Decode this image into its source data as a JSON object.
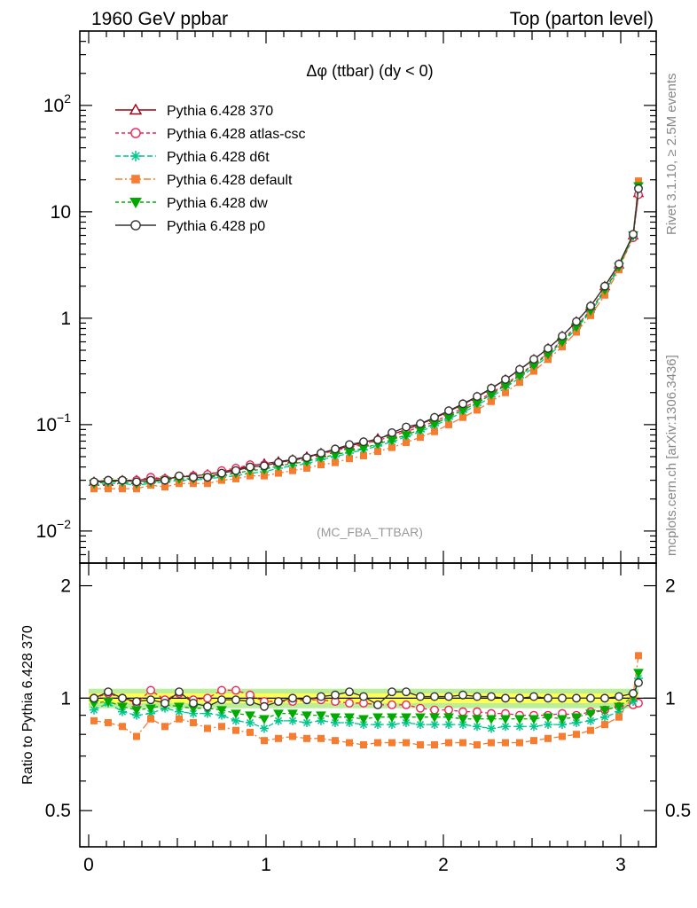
{
  "header": {
    "left": "1960 GeV ppbar",
    "right": "Top (parton level)"
  },
  "plot_title": "Δφ (ttbar) (dy < 0)",
  "watermark": "(MC_FBA_TTBAR)",
  "side_text": {
    "rivet": "Rivet 3.1.10, ≥ 2.5M events",
    "mcplots": "mcplots.cern.ch [arXiv:1306.3436]"
  },
  "ratio_ylabel": "Ratio to Pythia 6.428 370",
  "colors": {
    "p370": "#9b0015",
    "atlas": "#ee2255",
    "d6t": "#00c78c",
    "default": "#f57d32",
    "dw": "#00aa00",
    "p0": "#333333",
    "band_inner": "#ffff55",
    "band_outer": "#bbee99"
  },
  "chart_data": [
    {
      "type": "line",
      "title": "Δφ (ttbar) (dy < 0)",
      "xlabel": "",
      "ylabel": "",
      "xlim": [
        -0.05,
        3.2
      ],
      "ylim": [
        0.005,
        500
      ],
      "yscale": "log",
      "xticks": [
        0,
        1,
        2,
        3
      ],
      "yticks": [
        {
          "value": 0.01,
          "base": "10",
          "exp": "−2"
        },
        {
          "value": 0.1,
          "base": "10",
          "exp": "−1"
        },
        {
          "value": 1,
          "base": "1",
          "exp": ""
        },
        {
          "value": 10,
          "base": "10",
          "exp": ""
        },
        {
          "value": 100,
          "base": "10",
          "exp": "2"
        }
      ],
      "x": [
        0.03,
        0.11,
        0.19,
        0.27,
        0.35,
        0.43,
        0.51,
        0.59,
        0.67,
        0.75,
        0.83,
        0.91,
        0.99,
        1.07,
        1.15,
        1.23,
        1.31,
        1.39,
        1.47,
        1.55,
        1.63,
        1.71,
        1.79,
        1.87,
        1.95,
        2.03,
        2.11,
        2.19,
        2.27,
        2.35,
        2.43,
        2.51,
        2.59,
        2.67,
        2.75,
        2.83,
        2.91,
        2.99,
        3.07,
        3.1
      ],
      "series": [
        {
          "name": "Pythia 6.428 370",
          "key": "p370",
          "marker": "triangle-up",
          "dash": "solid",
          "values": [
            0.029,
            0.029,
            0.03,
            0.03,
            0.031,
            0.031,
            0.032,
            0.033,
            0.034,
            0.036,
            0.038,
            0.041,
            0.043,
            0.045,
            0.047,
            0.05,
            0.054,
            0.058,
            0.063,
            0.068,
            0.074,
            0.081,
            0.09,
            0.101,
            0.115,
            0.133,
            0.155,
            0.182,
            0.218,
            0.265,
            0.328,
            0.41,
            0.52,
            0.68,
            0.93,
            1.3,
            2.0,
            3.2,
            6.0,
            15.0
          ]
        },
        {
          "name": "Pythia 6.428 atlas-csc",
          "key": "atlas",
          "marker": "circle-open",
          "dash": "4,3",
          "values": [
            0.029,
            0.03,
            0.03,
            0.03,
            0.032,
            0.031,
            0.033,
            0.033,
            0.034,
            0.037,
            0.039,
            0.042,
            0.042,
            0.044,
            0.046,
            0.049,
            0.053,
            0.057,
            0.061,
            0.066,
            0.071,
            0.078,
            0.086,
            0.095,
            0.107,
            0.123,
            0.143,
            0.167,
            0.198,
            0.24,
            0.297,
            0.37,
            0.47,
            0.62,
            0.84,
            1.2,
            1.85,
            3.0,
            5.7,
            14.5
          ]
        },
        {
          "name": "Pythia 6.428 d6t",
          "key": "d6t",
          "marker": "star",
          "dash": "6,3",
          "values": [
            0.027,
            0.028,
            0.028,
            0.027,
            0.028,
            0.029,
            0.03,
            0.03,
            0.031,
            0.032,
            0.033,
            0.035,
            0.036,
            0.039,
            0.041,
            0.043,
            0.047,
            0.05,
            0.054,
            0.058,
            0.063,
            0.069,
            0.077,
            0.086,
            0.098,
            0.113,
            0.131,
            0.152,
            0.182,
            0.222,
            0.276,
            0.345,
            0.44,
            0.58,
            0.8,
            1.14,
            1.78,
            2.95,
            5.9,
            17.0
          ]
        },
        {
          "name": "Pythia 6.428 default",
          "key": "default",
          "marker": "square",
          "dash": "8,3,2,3",
          "values": [
            0.025,
            0.025,
            0.025,
            0.025,
            0.027,
            0.026,
            0.028,
            0.028,
            0.028,
            0.03,
            0.031,
            0.033,
            0.033,
            0.035,
            0.037,
            0.039,
            0.042,
            0.044,
            0.048,
            0.051,
            0.056,
            0.061,
            0.068,
            0.076,
            0.086,
            0.1,
            0.117,
            0.137,
            0.165,
            0.2,
            0.25,
            0.318,
            0.41,
            0.54,
            0.74,
            1.06,
            1.65,
            2.85,
            6.1,
            19.5
          ]
        },
        {
          "name": "Pythia 6.428 dw",
          "key": "dw",
          "marker": "triangle-down",
          "dash": "4,3",
          "values": [
            0.028,
            0.029,
            0.029,
            0.028,
            0.029,
            0.03,
            0.031,
            0.031,
            0.032,
            0.033,
            0.035,
            0.037,
            0.038,
            0.041,
            0.043,
            0.045,
            0.049,
            0.052,
            0.056,
            0.06,
            0.066,
            0.072,
            0.08,
            0.09,
            0.102,
            0.118,
            0.137,
            0.16,
            0.192,
            0.233,
            0.29,
            0.362,
            0.46,
            0.6,
            0.83,
            1.18,
            1.85,
            3.05,
            6.05,
            17.5
          ]
        },
        {
          "name": "Pythia 6.428 p0",
          "key": "p0",
          "marker": "circle-open",
          "dash": "solid",
          "values": [
            0.029,
            0.03,
            0.03,
            0.029,
            0.03,
            0.03,
            0.033,
            0.032,
            0.032,
            0.035,
            0.037,
            0.04,
            0.041,
            0.044,
            0.047,
            0.049,
            0.054,
            0.059,
            0.065,
            0.069,
            0.072,
            0.084,
            0.095,
            0.102,
            0.117,
            0.135,
            0.157,
            0.184,
            0.22,
            0.266,
            0.33,
            0.412,
            0.52,
            0.68,
            0.93,
            1.3,
            2.0,
            3.23,
            6.15,
            16.5
          ]
        }
      ]
    },
    {
      "type": "line",
      "title": "",
      "xlabel": "",
      "ylabel": "Ratio to Pythia 6.428 370",
      "xlim": [
        -0.05,
        3.2
      ],
      "ylim": [
        0.4,
        2.3
      ],
      "yscale": "log",
      "xticks": [
        0,
        1,
        2,
        3
      ],
      "yticks": [
        0.5,
        1,
        2
      ],
      "reference_band": {
        "inner": [
          0.97,
          1.03
        ],
        "outer": [
          0.94,
          1.06
        ]
      },
      "x": [
        0.03,
        0.11,
        0.19,
        0.27,
        0.35,
        0.43,
        0.51,
        0.59,
        0.67,
        0.75,
        0.83,
        0.91,
        0.99,
        1.07,
        1.15,
        1.23,
        1.31,
        1.39,
        1.47,
        1.55,
        1.63,
        1.71,
        1.79,
        1.87,
        1.95,
        2.03,
        2.11,
        2.19,
        2.27,
        2.35,
        2.43,
        2.51,
        2.59,
        2.67,
        2.75,
        2.83,
        2.91,
        2.99,
        3.07,
        3.1
      ],
      "series": [
        {
          "name": "Pythia 6.428 370",
          "key": "p370",
          "values": [
            1,
            1,
            1,
            1,
            1,
            1,
            1,
            1,
            1,
            1,
            1,
            1,
            1,
            1,
            1,
            1,
            1,
            1,
            1,
            1,
            1,
            1,
            1,
            1,
            1,
            1,
            1,
            1,
            1,
            1,
            1,
            1,
            1,
            1,
            1,
            1,
            1,
            1,
            1,
            1
          ]
        },
        {
          "name": "Pythia 6.428 atlas-csc",
          "key": "atlas",
          "values": [
            1.0,
            1.03,
            1.0,
            0.97,
            1.05,
            0.99,
            1.03,
            0.99,
            1.0,
            1.05,
            1.05,
            1.02,
            0.98,
            0.98,
            0.98,
            0.99,
            0.99,
            0.98,
            0.97,
            0.97,
            0.96,
            0.96,
            0.96,
            0.94,
            0.93,
            0.93,
            0.92,
            0.92,
            0.91,
            0.91,
            0.9,
            0.9,
            0.9,
            0.91,
            0.9,
            0.92,
            0.93,
            0.95,
            0.96,
            0.97
          ]
        },
        {
          "name": "Pythia 6.428 d6t",
          "key": "d6t",
          "values": [
            0.93,
            0.97,
            0.92,
            0.9,
            0.91,
            0.94,
            0.92,
            0.91,
            0.91,
            0.9,
            0.87,
            0.86,
            0.83,
            0.87,
            0.87,
            0.86,
            0.87,
            0.86,
            0.86,
            0.85,
            0.85,
            0.85,
            0.86,
            0.85,
            0.85,
            0.85,
            0.85,
            0.84,
            0.83,
            0.84,
            0.84,
            0.84,
            0.85,
            0.85,
            0.86,
            0.87,
            0.89,
            0.92,
            0.98,
            1.13
          ]
        },
        {
          "name": "Pythia 6.428 default",
          "key": "default",
          "values": [
            0.87,
            0.86,
            0.84,
            0.79,
            0.88,
            0.84,
            0.88,
            0.86,
            0.83,
            0.84,
            0.82,
            0.81,
            0.77,
            0.78,
            0.79,
            0.78,
            0.78,
            0.77,
            0.76,
            0.75,
            0.76,
            0.76,
            0.76,
            0.75,
            0.75,
            0.76,
            0.76,
            0.75,
            0.76,
            0.76,
            0.76,
            0.77,
            0.78,
            0.79,
            0.8,
            0.82,
            0.85,
            0.89,
            1.02,
            1.3
          ]
        },
        {
          "name": "Pythia 6.428 dw",
          "key": "dw",
          "values": [
            0.97,
            0.98,
            0.95,
            0.93,
            0.94,
            0.96,
            0.95,
            0.94,
            0.94,
            0.93,
            0.91,
            0.9,
            0.88,
            0.91,
            0.91,
            0.9,
            0.9,
            0.89,
            0.89,
            0.88,
            0.89,
            0.89,
            0.89,
            0.89,
            0.89,
            0.89,
            0.88,
            0.88,
            0.88,
            0.88,
            0.88,
            0.88,
            0.89,
            0.88,
            0.89,
            0.91,
            0.93,
            0.95,
            1.01,
            1.17
          ]
        },
        {
          "name": "Pythia 6.428 p0",
          "key": "p0",
          "values": [
            1.0,
            1.04,
            1.0,
            0.98,
            0.99,
            0.97,
            1.04,
            0.97,
            0.95,
            0.99,
            0.99,
            0.98,
            0.95,
            0.98,
            1.0,
            0.99,
            1.01,
            1.02,
            1.04,
            1.01,
            0.96,
            1.04,
            1.04,
            1.01,
            1.01,
            1.01,
            1.02,
            1.01,
            1.01,
            1.0,
            1.0,
            1.01,
            1.0,
            1.0,
            1.0,
            1.0,
            1.0,
            1.01,
            1.03,
            1.1
          ]
        }
      ]
    }
  ]
}
